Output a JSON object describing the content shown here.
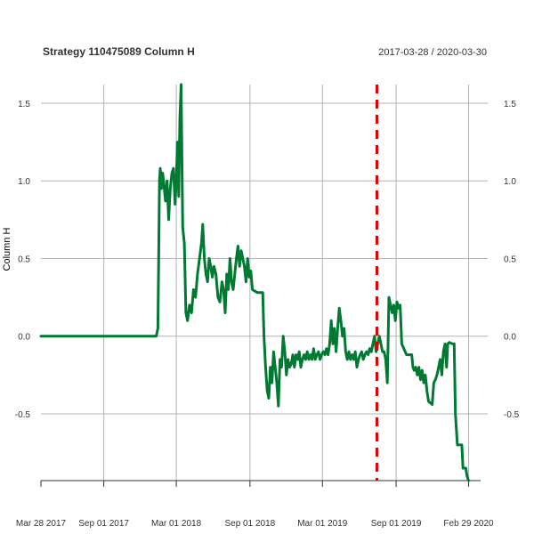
{
  "chart_data": {
    "type": "line",
    "title": "Strategy 110475089 Column H",
    "date_range": "2017-03-28 / 2020-03-30",
    "ylabel": "Column H",
    "xlim": [
      "2017-03-28",
      "2020-03-30"
    ],
    "ylim": [
      -0.93,
      1.62
    ],
    "x_ticks": [
      {
        "date": "2017-03-28",
        "label": "Mar 28 2017"
      },
      {
        "date": "2017-09-01",
        "label": "Sep 01 2017"
      },
      {
        "date": "2018-03-01",
        "label": "Mar 01 2018"
      },
      {
        "date": "2018-09-01",
        "label": "Sep 01 2018"
      },
      {
        "date": "2019-03-01",
        "label": "Mar 01 2019"
      },
      {
        "date": "2019-09-01",
        "label": "Sep 01 2019"
      },
      {
        "date": "2020-02-29",
        "label": "Feb 29 2020"
      }
    ],
    "y_ticks": [
      {
        "value": 1.5,
        "label": "1.5"
      },
      {
        "value": 1.0,
        "label": "1.0"
      },
      {
        "value": 0.5,
        "label": "0.5"
      },
      {
        "value": 0.0,
        "label": "0.0"
      },
      {
        "value": -0.5,
        "label": "-0.5"
      }
    ],
    "grid": true,
    "series": [
      {
        "color": "#007a33",
        "points": [
          [
            "2017-03-28",
            0.0
          ],
          [
            "2017-09-01",
            0.0
          ],
          [
            "2018-01-10",
            0.0
          ],
          [
            "2018-01-14",
            0.05
          ],
          [
            "2018-01-16",
            0.5
          ],
          [
            "2018-01-18",
            1.0
          ],
          [
            "2018-01-20",
            1.08
          ],
          [
            "2018-01-23",
            0.95
          ],
          [
            "2018-01-26",
            1.05
          ],
          [
            "2018-01-29",
            0.98
          ],
          [
            "2018-02-02",
            0.87
          ],
          [
            "2018-02-06",
            1.0
          ],
          [
            "2018-02-10",
            0.75
          ],
          [
            "2018-02-14",
            0.95
          ],
          [
            "2018-02-18",
            1.05
          ],
          [
            "2018-02-22",
            1.08
          ],
          [
            "2018-02-26",
            0.85
          ],
          [
            "2018-03-01",
            1.0
          ],
          [
            "2018-03-04",
            1.25
          ],
          [
            "2018-03-07",
            0.9
          ],
          [
            "2018-03-10",
            1.4
          ],
          [
            "2018-03-13",
            1.62
          ],
          [
            "2018-03-17",
            0.7
          ],
          [
            "2018-03-21",
            0.6
          ],
          [
            "2018-03-25",
            0.15
          ],
          [
            "2018-03-29",
            0.1
          ],
          [
            "2018-04-03",
            0.2
          ],
          [
            "2018-04-08",
            0.15
          ],
          [
            "2018-04-13",
            0.3
          ],
          [
            "2018-04-18",
            0.25
          ],
          [
            "2018-04-23",
            0.4
          ],
          [
            "2018-04-28",
            0.5
          ],
          [
            "2018-05-03",
            0.6
          ],
          [
            "2018-05-06",
            0.72
          ],
          [
            "2018-05-10",
            0.5
          ],
          [
            "2018-05-14",
            0.4
          ],
          [
            "2018-05-18",
            0.35
          ],
          [
            "2018-05-22",
            0.5
          ],
          [
            "2018-05-26",
            0.45
          ],
          [
            "2018-05-30",
            0.38
          ],
          [
            "2018-06-03",
            0.45
          ],
          [
            "2018-06-08",
            0.4
          ],
          [
            "2018-06-13",
            0.25
          ],
          [
            "2018-06-18",
            0.22
          ],
          [
            "2018-06-23",
            0.35
          ],
          [
            "2018-06-27",
            0.3
          ],
          [
            "2018-07-01",
            0.15
          ],
          [
            "2018-07-05",
            0.4
          ],
          [
            "2018-07-09",
            0.3
          ],
          [
            "2018-07-13",
            0.5
          ],
          [
            "2018-07-17",
            0.35
          ],
          [
            "2018-07-21",
            0.3
          ],
          [
            "2018-07-25",
            0.4
          ],
          [
            "2018-07-29",
            0.5
          ],
          [
            "2018-08-02",
            0.58
          ],
          [
            "2018-08-06",
            0.45
          ],
          [
            "2018-08-10",
            0.55
          ],
          [
            "2018-08-14",
            0.5
          ],
          [
            "2018-08-18",
            0.45
          ],
          [
            "2018-08-22",
            0.35
          ],
          [
            "2018-08-26",
            0.5
          ],
          [
            "2018-08-30",
            0.38
          ],
          [
            "2018-09-03",
            0.42
          ],
          [
            "2018-09-07",
            0.3
          ],
          [
            "2018-09-20",
            0.28
          ],
          [
            "2018-10-03",
            0.28
          ],
          [
            "2018-10-06",
            0.0
          ],
          [
            "2018-10-10",
            -0.2
          ],
          [
            "2018-10-14",
            -0.35
          ],
          [
            "2018-10-18",
            -0.4
          ],
          [
            "2018-10-22",
            -0.2
          ],
          [
            "2018-10-26",
            -0.3
          ],
          [
            "2018-10-30",
            -0.1
          ],
          [
            "2018-11-03",
            -0.2
          ],
          [
            "2018-11-07",
            -0.3
          ],
          [
            "2018-11-11",
            -0.45
          ],
          [
            "2018-11-15",
            -0.15
          ],
          [
            "2018-11-19",
            -0.2
          ],
          [
            "2018-11-23",
            0.0
          ],
          [
            "2018-11-27",
            -0.1
          ],
          [
            "2018-12-01",
            -0.25
          ],
          [
            "2018-12-05",
            -0.15
          ],
          [
            "2018-12-09",
            -0.2
          ],
          [
            "2018-12-13",
            -0.18
          ],
          [
            "2018-12-17",
            -0.12
          ],
          [
            "2018-12-21",
            -0.2
          ],
          [
            "2018-12-25",
            -0.12
          ],
          [
            "2018-12-29",
            -0.15
          ],
          [
            "2019-01-02",
            -0.1
          ],
          [
            "2019-01-06",
            -0.2
          ],
          [
            "2019-01-10",
            -0.15
          ],
          [
            "2019-01-14",
            -0.12
          ],
          [
            "2019-01-18",
            -0.15
          ],
          [
            "2019-01-22",
            -0.1
          ],
          [
            "2019-01-26",
            -0.15
          ],
          [
            "2019-01-30",
            -0.12
          ],
          [
            "2019-02-03",
            -0.15
          ],
          [
            "2019-02-07",
            -0.08
          ],
          [
            "2019-02-11",
            -0.15
          ],
          [
            "2019-02-15",
            -0.12
          ],
          [
            "2019-02-19",
            -0.1
          ],
          [
            "2019-02-23",
            -0.15
          ],
          [
            "2019-02-27",
            -0.12
          ],
          [
            "2019-03-03",
            -0.1
          ],
          [
            "2019-03-07",
            -0.12
          ],
          [
            "2019-03-11",
            -0.08
          ],
          [
            "2019-03-15",
            -0.12
          ],
          [
            "2019-03-19",
            -0.05
          ],
          [
            "2019-03-23",
            0.1
          ],
          [
            "2019-03-27",
            -0.05
          ],
          [
            "2019-03-31",
            0.05
          ],
          [
            "2019-04-04",
            -0.1
          ],
          [
            "2019-04-08",
            0.05
          ],
          [
            "2019-04-12",
            0.18
          ],
          [
            "2019-04-16",
            0.1
          ],
          [
            "2019-04-20",
            0.0
          ],
          [
            "2019-04-24",
            0.05
          ],
          [
            "2019-04-28",
            -0.1
          ],
          [
            "2019-05-02",
            -0.15
          ],
          [
            "2019-05-06",
            -0.1
          ],
          [
            "2019-05-10",
            -0.15
          ],
          [
            "2019-05-14",
            -0.12
          ],
          [
            "2019-05-18",
            -0.15
          ],
          [
            "2019-05-22",
            -0.1
          ],
          [
            "2019-05-26",
            -0.2
          ],
          [
            "2019-05-30",
            -0.15
          ],
          [
            "2019-06-03",
            -0.12
          ],
          [
            "2019-06-07",
            -0.1
          ],
          [
            "2019-06-11",
            -0.15
          ],
          [
            "2019-06-15",
            -0.12
          ],
          [
            "2019-06-19",
            -0.1
          ],
          [
            "2019-06-23",
            -0.12
          ],
          [
            "2019-06-27",
            -0.08
          ],
          [
            "2019-07-01",
            -0.1
          ],
          [
            "2019-07-05",
            -0.05
          ],
          [
            "2019-07-09",
            0.0
          ],
          [
            "2019-07-13",
            -0.1
          ],
          [
            "2019-07-17",
            -0.05
          ],
          [
            "2019-07-21",
            0.0
          ],
          [
            "2019-07-25",
            -0.05
          ],
          [
            "2019-07-29",
            -0.1
          ],
          [
            "2019-08-02",
            -0.1
          ],
          [
            "2019-08-06",
            -0.15
          ],
          [
            "2019-08-10",
            -0.3
          ],
          [
            "2019-08-14",
            0.25
          ],
          [
            "2019-08-18",
            0.2
          ],
          [
            "2019-08-22",
            0.15
          ],
          [
            "2019-08-26",
            0.2
          ],
          [
            "2019-08-30",
            0.1
          ],
          [
            "2019-09-03",
            0.22
          ],
          [
            "2019-09-07",
            0.18
          ],
          [
            "2019-09-11",
            0.2
          ],
          [
            "2019-09-15",
            -0.05
          ],
          [
            "2019-09-27",
            -0.12
          ],
          [
            "2019-10-10",
            -0.12
          ],
          [
            "2019-10-13",
            -0.2
          ],
          [
            "2019-10-16",
            -0.22
          ],
          [
            "2019-10-20",
            -0.2
          ],
          [
            "2019-10-24",
            -0.25
          ],
          [
            "2019-10-28",
            -0.2
          ],
          [
            "2019-11-01",
            -0.28
          ],
          [
            "2019-11-05",
            -0.22
          ],
          [
            "2019-11-09",
            -0.3
          ],
          [
            "2019-11-13",
            -0.25
          ],
          [
            "2019-11-17",
            -0.35
          ],
          [
            "2019-11-21",
            -0.42
          ],
          [
            "2019-11-30",
            -0.44
          ],
          [
            "2019-12-04",
            -0.3
          ],
          [
            "2019-12-08",
            -0.28
          ],
          [
            "2019-12-12",
            -0.25
          ],
          [
            "2019-12-16",
            -0.2
          ],
          [
            "2019-12-20",
            -0.15
          ],
          [
            "2019-12-24",
            -0.25
          ],
          [
            "2019-12-28",
            -0.1
          ],
          [
            "2020-01-01",
            -0.05
          ],
          [
            "2020-01-05",
            -0.2
          ],
          [
            "2020-01-08",
            -0.05
          ],
          [
            "2020-01-12",
            -0.04
          ],
          [
            "2020-01-20",
            -0.05
          ],
          [
            "2020-01-24",
            -0.05
          ],
          [
            "2020-01-27",
            -0.5
          ],
          [
            "2020-02-01",
            -0.7
          ],
          [
            "2020-02-12",
            -0.7
          ],
          [
            "2020-02-15",
            -0.85
          ],
          [
            "2020-02-22",
            -0.85
          ],
          [
            "2020-02-25",
            -0.9
          ],
          [
            "2020-02-29",
            -0.93
          ]
        ]
      }
    ],
    "vline": {
      "date": "2019-07-15",
      "color": "#dd0000",
      "style": "dashed"
    }
  }
}
